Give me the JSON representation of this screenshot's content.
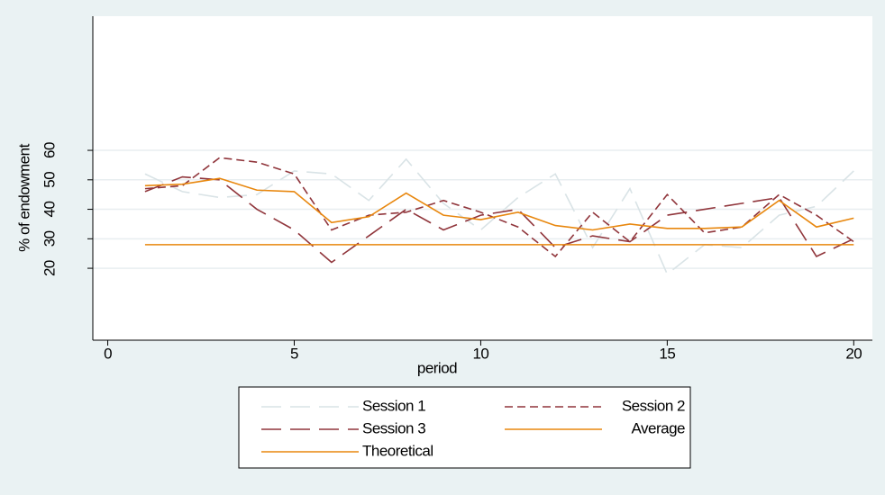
{
  "chart_data": {
    "type": "line",
    "x_label": "period",
    "y_label": "% of endowment",
    "x": [
      1,
      2,
      3,
      4,
      5,
      6,
      7,
      8,
      9,
      10,
      11,
      12,
      13,
      14,
      15,
      16,
      17,
      18,
      19,
      20
    ],
    "series": [
      {
        "name": "Session 1",
        "color": "#d9e3e6",
        "dash": "long",
        "values": [
          52,
          46,
          44,
          45,
          53,
          52,
          43,
          57,
          42,
          33,
          44,
          52,
          27,
          47,
          18,
          28,
          27,
          38,
          41,
          53
        ]
      },
      {
        "name": "Session 2",
        "color": "#90353b",
        "dash": "short",
        "values": [
          47,
          48,
          57.5,
          56,
          52,
          33,
          38,
          39,
          43,
          39,
          34,
          24,
          39,
          29,
          45,
          32,
          34,
          45,
          38,
          29
        ]
      },
      {
        "name": "Session 3",
        "color": "#90353b",
        "dash": "long",
        "values": [
          46,
          51,
          50,
          40,
          33,
          22,
          31,
          40,
          33,
          38,
          40,
          27,
          31,
          29,
          38,
          40,
          42,
          44,
          24,
          30
        ]
      },
      {
        "name": "Average",
        "color": "#e8870e",
        "dash": "solid",
        "values": [
          48,
          48.5,
          50.5,
          46.5,
          46,
          35.5,
          37.5,
          45.5,
          38,
          36.5,
          39,
          34.5,
          33,
          35,
          33.5,
          33.5,
          34,
          43,
          34,
          37
        ]
      },
      {
        "name": "Theoretical",
        "color": "#e8870e",
        "dash": "solid",
        "values": [
          28,
          28,
          28,
          28,
          28,
          28,
          28,
          28,
          28,
          28,
          28,
          28,
          28,
          28,
          28,
          28,
          28,
          28,
          28,
          28
        ]
      }
    ],
    "xlim": [
      -0.4,
      20.5
    ],
    "xticks": [
      0,
      5,
      10,
      15,
      20
    ],
    "ylim": [
      -4.4,
      105.5
    ],
    "yticks": [
      20,
      30,
      40,
      50,
      60
    ],
    "grid": true
  }
}
